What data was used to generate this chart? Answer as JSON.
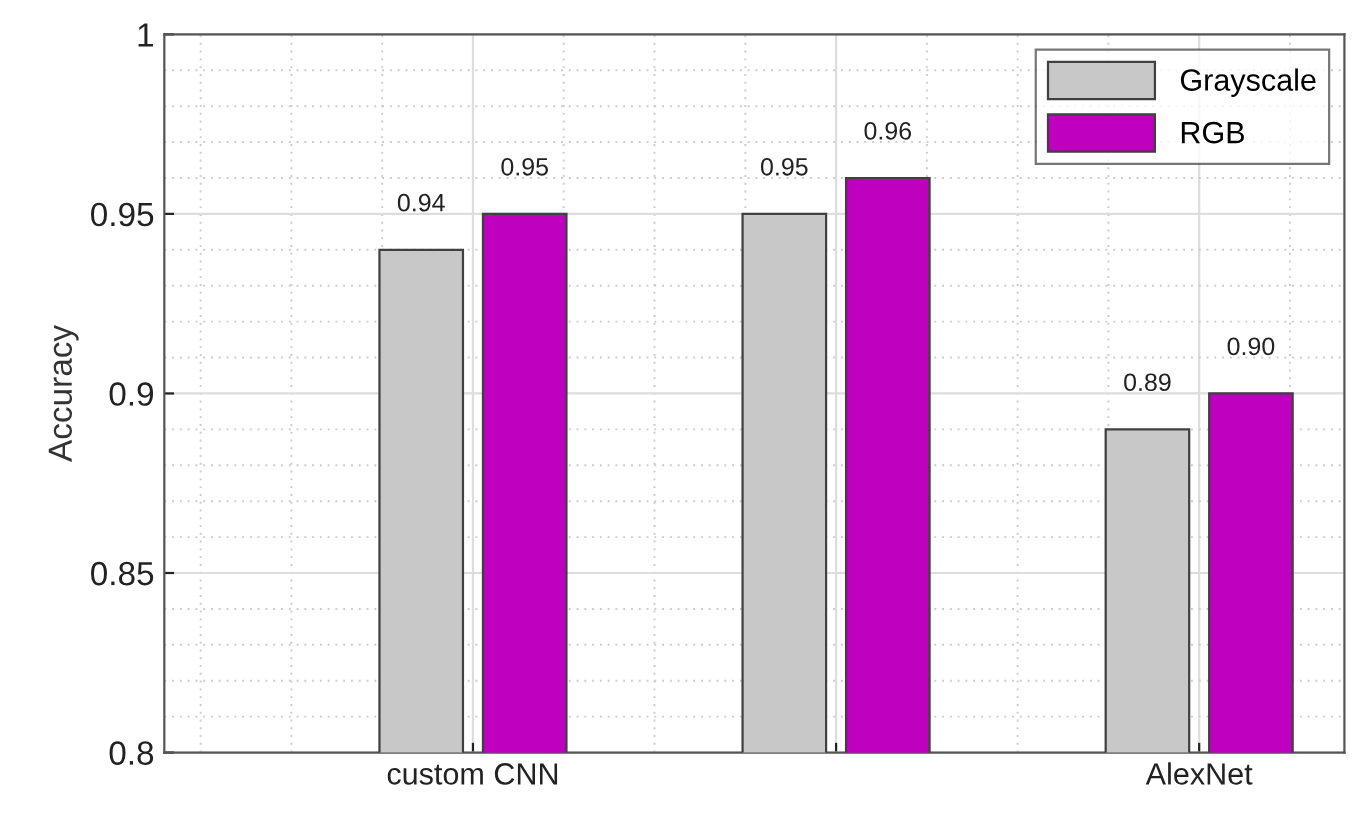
{
  "chart_data": {
    "type": "bar",
    "ylabel": "Accuracy",
    "categories": [
      "custom CNN",
      null,
      "AlexNet"
    ],
    "series": [
      {
        "name": "Grayscale",
        "color": "#c8c8c8",
        "values": [
          0.94,
          0.95,
          0.89
        ],
        "value_labels": [
          "0.94",
          "0.95",
          "0.89"
        ]
      },
      {
        "name": "RGB",
        "color": "#bf00bf",
        "values": [
          0.95,
          0.96,
          0.9
        ],
        "value_labels": [
          "0.95",
          "0.96",
          "0.90"
        ]
      }
    ],
    "ylim": [
      0.8,
      1
    ],
    "yticks": [
      0.8,
      {
        "value": 0.85,
        "label": "0.85"
      },
      {
        "value": 0.9,
        "label": "0.9"
      },
      0.95,
      1
    ],
    "grid": true,
    "legend": "top right"
  }
}
